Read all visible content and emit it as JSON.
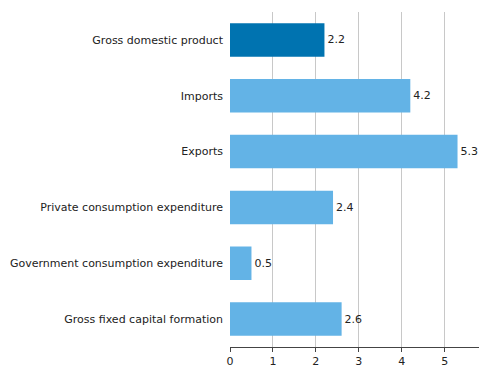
{
  "chart_data": {
    "type": "bar",
    "orientation": "horizontal",
    "categories": [
      "Gross domestic product",
      "Imports",
      "Exports",
      "Private consumption expenditure",
      "Government consumption expenditure",
      "Gross fixed capital formation"
    ],
    "values": [
      2.2,
      4.2,
      5.3,
      2.4,
      0.5,
      2.6
    ],
    "colors": [
      "#0073b0",
      "#63b3e6",
      "#63b3e6",
      "#63b3e6",
      "#63b3e6",
      "#63b3e6"
    ],
    "xlim": [
      0,
      5.8
    ],
    "xticks": [
      0,
      1,
      2,
      3,
      4,
      5
    ],
    "grid": true,
    "data_labels": true
  }
}
